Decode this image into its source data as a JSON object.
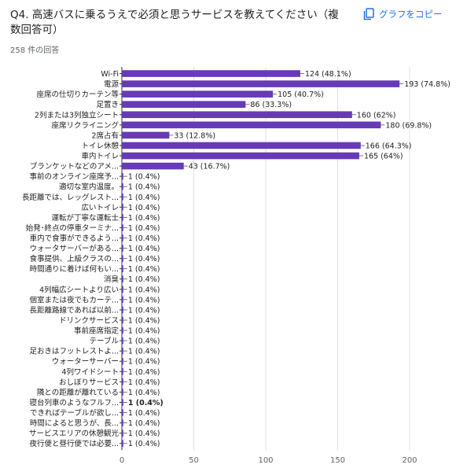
{
  "question": {
    "title": "Q4. 高速バスに乗るうえで必須と思うサービスを教えてください（複数回答可）"
  },
  "responses": {
    "count_text": "258 件の回答"
  },
  "copy_button": {
    "label": "グラフをコピー",
    "icon": "copy-icon",
    "color": "#1a73e8"
  },
  "chart_data": {
    "type": "bar",
    "orientation": "horizontal",
    "bar_color": "#673ab7",
    "categories": [
      "Wi-Fi",
      "電源",
      "座席の仕切りカーテン等",
      "足置き",
      "2列または3列独立シート",
      "座席リクライニング",
      "2席占有",
      "トイレ休憩",
      "車内トイレ",
      "ブランケットなどのアメ...",
      "事前のオンライン座席予...",
      "適切な室内温度。",
      "長距離では、レッグレスト...",
      "広いトイレ",
      "運転が丁寧な運転士",
      "始発･終点の停車ターミナ...",
      "車内で食事ができるよう...",
      "ウォータサーバーがある...",
      "食事提供、上級クラスの...",
      "時間通りに着けば何もい...",
      "消臭",
      "4列幅広シートより広い",
      "個室または夜でもカーテ...",
      "長距離路線であれば以前...",
      "ドリンクサービス",
      "事前座席指定",
      "テーブル",
      "足おきはフットレストよ...",
      "ウォーターサーバー",
      "4列ワイドシート",
      "おしぼりサービス",
      "隣との距離が離れている",
      "寝台列車のようなフルフ...",
      "できればテーブルが欲し...",
      "時間によると思うが、長...",
      "サービスエリアの休憩観光",
      "夜行便と昼行便では必要..."
    ],
    "values": [
      124,
      193,
      105,
      86,
      160,
      180,
      33,
      166,
      165,
      43,
      1,
      1,
      1,
      1,
      1,
      1,
      1,
      1,
      1,
      1,
      1,
      1,
      1,
      1,
      1,
      1,
      1,
      1,
      1,
      1,
      1,
      1,
      1,
      1,
      1,
      1,
      1
    ],
    "value_labels": [
      "124 (48.1%)",
      "193 (74.8%)",
      "105 (40.7%)",
      "86 (33.3%)",
      "160 (62%)",
      "180 (69.8%)",
      "33 (12.8%)",
      "166 (64.3%)",
      "165 (64%)",
      "43 (16.7%)",
      "1 (0.4%)",
      "1 (0.4%)",
      "1 (0.4%)",
      "1 (0.4%)",
      "1 (0.4%)",
      "1 (0.4%)",
      "1 (0.4%)",
      "1 (0.4%)",
      "1 (0.4%)",
      "1 (0.4%)",
      "1 (0.4%)",
      "1 (0.4%)",
      "1 (0.4%)",
      "1 (0.4%)",
      "1 (0.4%)",
      "1 (0.4%)",
      "1 (0.4%)",
      "1 (0.4%)",
      "1 (0.4%)",
      "1 (0.4%)",
      "1 (0.4%)",
      "1 (0.4%)",
      "1 (0.4%)",
      "1 (0.4%)",
      "1 (0.4%)",
      "1 (0.4%)",
      "1 (0.4%)"
    ],
    "bold_label_index": 32,
    "xlim": [
      0,
      200
    ],
    "xticks": [
      0,
      50,
      100,
      150,
      200
    ],
    "grid": true
  }
}
